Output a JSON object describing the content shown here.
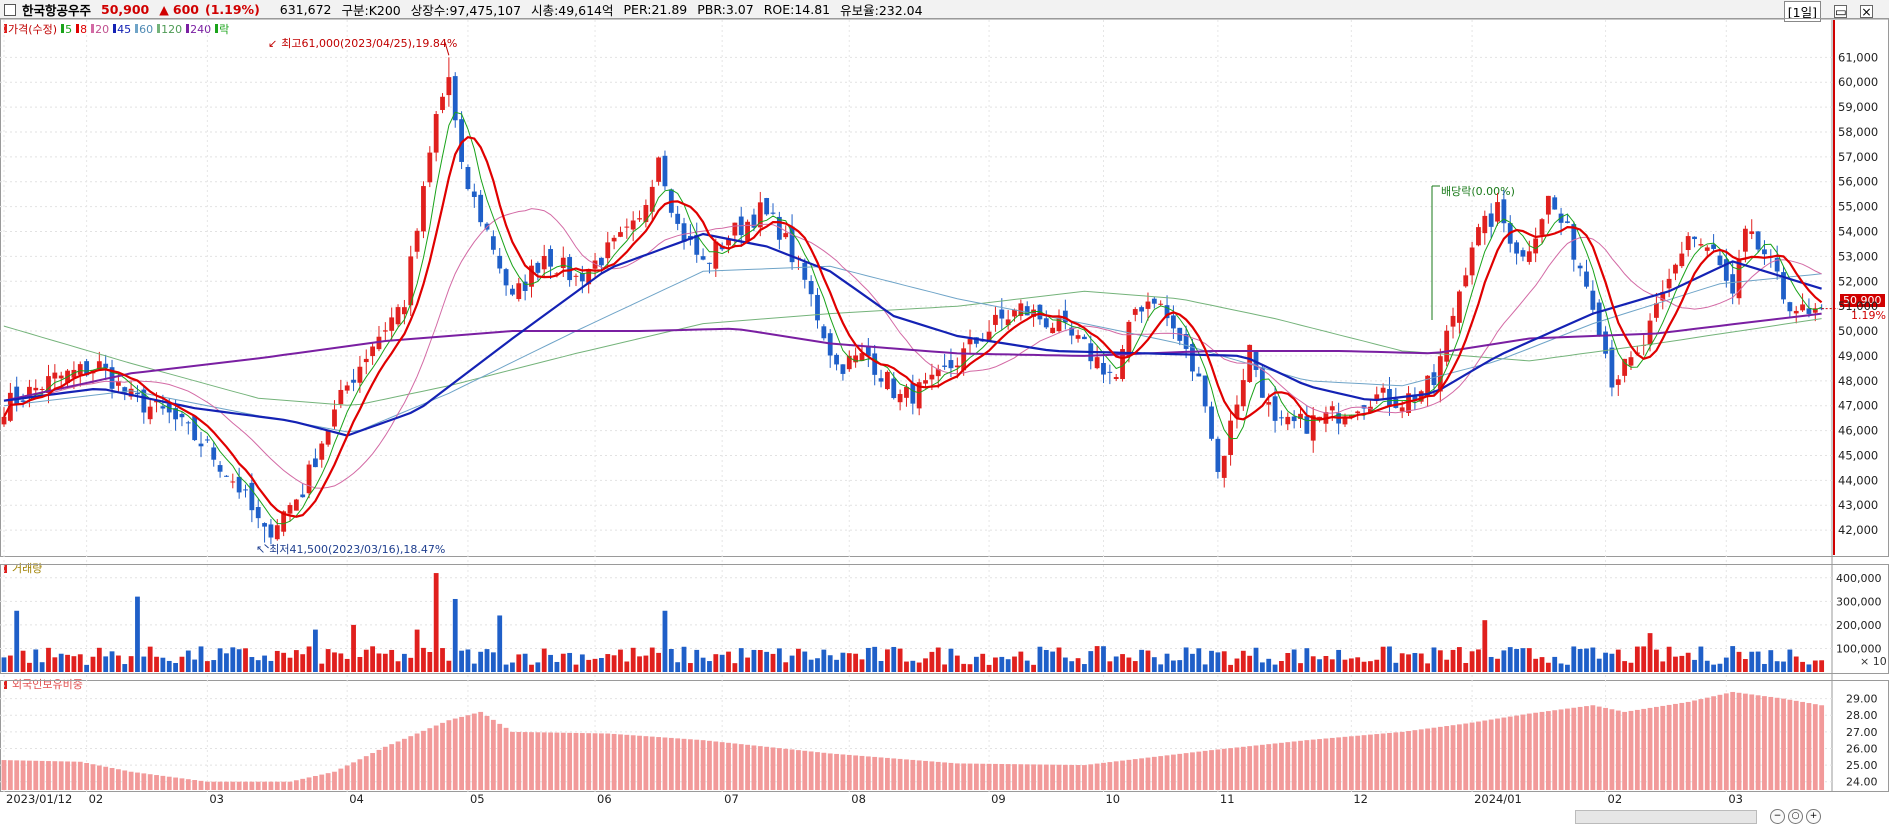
{
  "header": {
    "name": "한국항공우주",
    "price": "50,900",
    "change_arrow": "▲",
    "change": "600",
    "change_pct": "(1.19%)",
    "volume": "631,672",
    "segment": "구분:K200",
    "listed": "상장수:97,475,107",
    "market_cap": "시총:49,614억",
    "per": "PER:21.89",
    "pbr": "PBR:3.07",
    "roe": "ROE:14.81",
    "float": "유보율:232.04",
    "period": "[1일]"
  },
  "price_legend": {
    "price": "가격(수정)",
    "ma5": "5",
    "ma8": "8",
    "ma20": "20",
    "ma45": "45",
    "ma60": "60",
    "ma120": "120",
    "ma240": "240",
    "drop": "락"
  },
  "annotations": {
    "high": "최고61,000(2023/04/25),19.84%",
    "low": "최저41,500(2023/03/16),18.47%",
    "dividend": "배당락(0.00%)"
  },
  "price_tag": {
    "value": "50,900",
    "pct": "1.19%"
  },
  "volume_panel": {
    "title": "거래량",
    "multiplier": "× 10"
  },
  "foreign_panel": {
    "title": "외국인보유비중"
  },
  "colors": {
    "up": "#e0201e",
    "down": "#1f5fc8",
    "ma5": "#1aa31a",
    "ma8": "#e00000",
    "ma20": "#d36aa5",
    "ma45": "#1422b4",
    "ma60": "#6fa4c8",
    "ma120": "#74b37a",
    "ma240": "#7a1fa2",
    "foreign": "#f29a9a"
  },
  "chart_data": [
    {
      "type": "candlestick",
      "ylim": [
        41000,
        62500
      ],
      "y_ticks": [
        42000,
        43000,
        44000,
        45000,
        46000,
        47000,
        48000,
        49000,
        50000,
        51000,
        52000,
        53000,
        54000,
        55000,
        56000,
        57000,
        58000,
        59000,
        60000,
        61000
      ],
      "y_tick_labels": [
        "42,000",
        "43,000",
        "44,000",
        "45,000",
        "46,000",
        "47,000",
        "48,000",
        "49,000",
        "50,000",
        "51,000",
        "52,000",
        "53,000",
        "54,000",
        "55,000",
        "56,000",
        "57,000",
        "58,000",
        "59,000",
        "60,000",
        "61,000"
      ],
      "x_labels": [
        {
          "label": "2023/01/12",
          "day": 0
        },
        {
          "label": "02",
          "day": 13
        },
        {
          "label": "03",
          "day": 32
        },
        {
          "label": "04",
          "day": 54
        },
        {
          "label": "05",
          "day": 73
        },
        {
          "label": "06",
          "day": 93
        },
        {
          "label": "07",
          "day": 113
        },
        {
          "label": "08",
          "day": 133
        },
        {
          "label": "09",
          "day": 155
        },
        {
          "label": "10",
          "day": 173
        },
        {
          "label": "11",
          "day": 191
        },
        {
          "label": "12",
          "day": 212
        },
        {
          "label": "2024/01",
          "day": 231
        },
        {
          "label": "02",
          "day": 252
        },
        {
          "label": "03",
          "day": 271
        }
      ],
      "close_path": [
        [
          0,
          47000
        ],
        [
          8,
          48100
        ],
        [
          15,
          48600
        ],
        [
          20,
          47300
        ],
        [
          26,
          46600
        ],
        [
          32,
          45300
        ],
        [
          37,
          43700
        ],
        [
          41,
          41800
        ],
        [
          47,
          43600
        ],
        [
          50,
          45600
        ],
        [
          54,
          47800
        ],
        [
          58,
          49500
        ],
        [
          63,
          51200
        ],
        [
          66,
          55500
        ],
        [
          68,
          58600
        ],
        [
          70,
          60200
        ],
        [
          72,
          56400
        ],
        [
          74,
          55200
        ],
        [
          77,
          53400
        ],
        [
          80,
          51200
        ],
        [
          85,
          53100
        ],
        [
          90,
          52100
        ],
        [
          96,
          53400
        ],
        [
          100,
          54300
        ],
        [
          103,
          57200
        ],
        [
          106,
          54200
        ],
        [
          110,
          52700
        ],
        [
          114,
          53800
        ],
        [
          119,
          54800
        ],
        [
          122,
          54100
        ],
        [
          126,
          52000
        ],
        [
          131,
          48600
        ],
        [
          136,
          49000
        ],
        [
          141,
          47300
        ],
        [
          146,
          47800
        ],
        [
          151,
          49100
        ],
        [
          156,
          50300
        ],
        [
          160,
          50900
        ],
        [
          165,
          50300
        ],
        [
          170,
          49300
        ],
        [
          175,
          48100
        ],
        [
          178,
          50900
        ],
        [
          181,
          51400
        ],
        [
          185,
          49600
        ],
        [
          189,
          47400
        ],
        [
          191,
          44300
        ],
        [
          193,
          46200
        ],
        [
          196,
          49300
        ],
        [
          200,
          46100
        ],
        [
          205,
          46300
        ],
        [
          210,
          46700
        ],
        [
          215,
          47400
        ],
        [
          220,
          47200
        ],
        [
          225,
          47900
        ],
        [
          228,
          50700
        ],
        [
          231,
          53600
        ],
        [
          235,
          54800
        ],
        [
          239,
          52900
        ],
        [
          243,
          55300
        ],
        [
          246,
          53900
        ],
        [
          250,
          51300
        ],
        [
          253,
          48100
        ],
        [
          257,
          48900
        ],
        [
          261,
          51300
        ],
        [
          265,
          53900
        ],
        [
          269,
          53100
        ],
        [
          272,
          51300
        ],
        [
          274,
          53800
        ],
        [
          277,
          53100
        ],
        [
          280,
          51400
        ],
        [
          284,
          50500
        ],
        [
          286,
          50900
        ]
      ],
      "high": {
        "day": 70,
        "value": 61000,
        "date": "2023/04/25"
      },
      "low": {
        "day": 41,
        "value": 41500,
        "date": "2023/03/16"
      },
      "last": 50900,
      "ma45_path": [
        [
          0,
          47200
        ],
        [
          15,
          47700
        ],
        [
          30,
          46900
        ],
        [
          45,
          46400
        ],
        [
          54,
          45800
        ],
        [
          65,
          46800
        ],
        [
          80,
          49700
        ],
        [
          95,
          52500
        ],
        [
          110,
          53900
        ],
        [
          120,
          53400
        ],
        [
          130,
          52400
        ],
        [
          140,
          50600
        ],
        [
          150,
          49800
        ],
        [
          165,
          49200
        ],
        [
          180,
          49100
        ],
        [
          195,
          49000
        ],
        [
          205,
          47800
        ],
        [
          215,
          47200
        ],
        [
          225,
          47500
        ],
        [
          235,
          49000
        ],
        [
          250,
          50700
        ],
        [
          262,
          51600
        ],
        [
          272,
          52800
        ],
        [
          286,
          51700
        ]
      ],
      "ma240_path": [
        [
          0,
          47200
        ],
        [
          20,
          48300
        ],
        [
          40,
          48900
        ],
        [
          60,
          49600
        ],
        [
          80,
          50000
        ],
        [
          100,
          50000
        ],
        [
          115,
          50100
        ],
        [
          130,
          49500
        ],
        [
          150,
          49100
        ],
        [
          170,
          49000
        ],
        [
          190,
          49200
        ],
        [
          210,
          49200
        ],
        [
          225,
          49100
        ],
        [
          240,
          49700
        ],
        [
          260,
          49900
        ],
        [
          286,
          50700
        ]
      ],
      "ma120_path": [
        [
          0,
          50200
        ],
        [
          20,
          48700
        ],
        [
          40,
          47300
        ],
        [
          55,
          47000
        ],
        [
          70,
          47800
        ],
        [
          90,
          49100
        ],
        [
          110,
          50300
        ],
        [
          130,
          50700
        ],
        [
          150,
          51000
        ],
        [
          170,
          51600
        ],
        [
          185,
          51300
        ],
        [
          200,
          50500
        ],
        [
          220,
          49200
        ],
        [
          240,
          48800
        ],
        [
          260,
          49500
        ],
        [
          286,
          50500
        ]
      ],
      "ma60_path": [
        [
          0,
          47000
        ],
        [
          20,
          47600
        ],
        [
          40,
          46600
        ],
        [
          55,
          45900
        ],
        [
          70,
          47500
        ],
        [
          90,
          50000
        ],
        [
          110,
          52400
        ],
        [
          130,
          52600
        ],
        [
          150,
          51300
        ],
        [
          170,
          50300
        ],
        [
          185,
          49500
        ],
        [
          205,
          48000
        ],
        [
          220,
          47800
        ],
        [
          235,
          48800
        ],
        [
          250,
          50300
        ],
        [
          270,
          51900
        ],
        [
          286,
          52300
        ]
      ]
    },
    {
      "type": "bar",
      "title": "거래량",
      "ylim": [
        0,
        450000
      ],
      "y_ticks": [
        100000,
        200000,
        300000,
        400000
      ],
      "y_tick_labels": [
        "100,000",
        "200,000",
        "300,000",
        "400,000"
      ],
      "spikes": [
        {
          "day": 2,
          "value": 260000
        },
        {
          "day": 21,
          "value": 320000
        },
        {
          "day": 49,
          "value": 180000
        },
        {
          "day": 55,
          "value": 200000
        },
        {
          "day": 65,
          "value": 180000
        },
        {
          "day": 68,
          "value": 420000
        },
        {
          "day": 71,
          "value": 310000
        },
        {
          "day": 78,
          "value": 240000
        },
        {
          "day": 104,
          "value": 260000
        },
        {
          "day": 233,
          "value": 220000
        },
        {
          "day": 259,
          "value": 165000
        },
        {
          "day": 272,
          "value": 110000
        }
      ],
      "typical_range": [
        30000,
        110000
      ]
    },
    {
      "type": "bar",
      "title": "외국인보유비중",
      "ylim": [
        23.5,
        30.0
      ],
      "y_ticks": [
        24,
        25,
        26,
        27,
        28,
        29
      ],
      "y_tick_labels": [
        "24.00",
        "25.00",
        "26.00",
        "27.00",
        "28.00",
        "29.00"
      ],
      "path": [
        [
          0,
          25.3
        ],
        [
          12,
          25.2
        ],
        [
          20,
          24.6
        ],
        [
          32,
          24.0
        ],
        [
          45,
          24.0
        ],
        [
          52,
          24.6
        ],
        [
          60,
          26.1
        ],
        [
          70,
          27.7
        ],
        [
          75,
          28.2
        ],
        [
          80,
          27.0
        ],
        [
          95,
          26.9
        ],
        [
          110,
          26.5
        ],
        [
          130,
          25.7
        ],
        [
          150,
          25.1
        ],
        [
          170,
          25.0
        ],
        [
          190,
          25.9
        ],
        [
          205,
          26.5
        ],
        [
          220,
          27.0
        ],
        [
          230,
          27.5
        ],
        [
          240,
          28.1
        ],
        [
          250,
          28.6
        ],
        [
          255,
          28.2
        ],
        [
          265,
          28.8
        ],
        [
          272,
          29.4
        ],
        [
          280,
          29.0
        ],
        [
          286,
          28.6
        ]
      ]
    }
  ]
}
